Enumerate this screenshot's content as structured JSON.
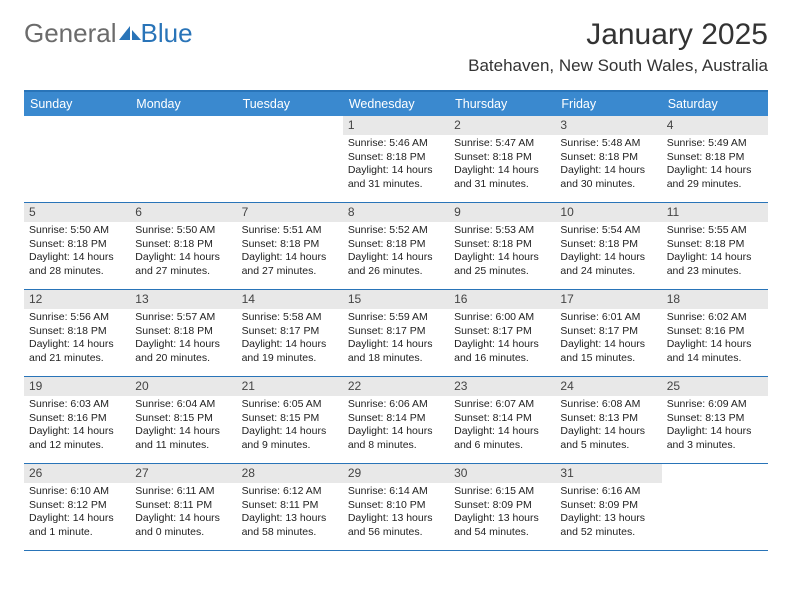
{
  "logo": {
    "text1": "General",
    "text2": "Blue"
  },
  "title": "January 2025",
  "location": "Batehaven, New South Wales, Australia",
  "colors": {
    "header_bar": "#3a89cf",
    "header_border": "#2974b8",
    "day_num_bg": "#e8e8e8",
    "logo_gray": "#6b6b6b",
    "logo_blue": "#2974b8"
  },
  "day_names": [
    "Sunday",
    "Monday",
    "Tuesday",
    "Wednesday",
    "Thursday",
    "Friday",
    "Saturday"
  ],
  "weeks": [
    [
      {
        "n": "",
        "sunrise": "",
        "sunset": "",
        "daylight": ""
      },
      {
        "n": "",
        "sunrise": "",
        "sunset": "",
        "daylight": ""
      },
      {
        "n": "",
        "sunrise": "",
        "sunset": "",
        "daylight": ""
      },
      {
        "n": "1",
        "sunrise": "Sunrise: 5:46 AM",
        "sunset": "Sunset: 8:18 PM",
        "daylight": "Daylight: 14 hours and 31 minutes."
      },
      {
        "n": "2",
        "sunrise": "Sunrise: 5:47 AM",
        "sunset": "Sunset: 8:18 PM",
        "daylight": "Daylight: 14 hours and 31 minutes."
      },
      {
        "n": "3",
        "sunrise": "Sunrise: 5:48 AM",
        "sunset": "Sunset: 8:18 PM",
        "daylight": "Daylight: 14 hours and 30 minutes."
      },
      {
        "n": "4",
        "sunrise": "Sunrise: 5:49 AM",
        "sunset": "Sunset: 8:18 PM",
        "daylight": "Daylight: 14 hours and 29 minutes."
      }
    ],
    [
      {
        "n": "5",
        "sunrise": "Sunrise: 5:50 AM",
        "sunset": "Sunset: 8:18 PM",
        "daylight": "Daylight: 14 hours and 28 minutes."
      },
      {
        "n": "6",
        "sunrise": "Sunrise: 5:50 AM",
        "sunset": "Sunset: 8:18 PM",
        "daylight": "Daylight: 14 hours and 27 minutes."
      },
      {
        "n": "7",
        "sunrise": "Sunrise: 5:51 AM",
        "sunset": "Sunset: 8:18 PM",
        "daylight": "Daylight: 14 hours and 27 minutes."
      },
      {
        "n": "8",
        "sunrise": "Sunrise: 5:52 AM",
        "sunset": "Sunset: 8:18 PM",
        "daylight": "Daylight: 14 hours and 26 minutes."
      },
      {
        "n": "9",
        "sunrise": "Sunrise: 5:53 AM",
        "sunset": "Sunset: 8:18 PM",
        "daylight": "Daylight: 14 hours and 25 minutes."
      },
      {
        "n": "10",
        "sunrise": "Sunrise: 5:54 AM",
        "sunset": "Sunset: 8:18 PM",
        "daylight": "Daylight: 14 hours and 24 minutes."
      },
      {
        "n": "11",
        "sunrise": "Sunrise: 5:55 AM",
        "sunset": "Sunset: 8:18 PM",
        "daylight": "Daylight: 14 hours and 23 minutes."
      }
    ],
    [
      {
        "n": "12",
        "sunrise": "Sunrise: 5:56 AM",
        "sunset": "Sunset: 8:18 PM",
        "daylight": "Daylight: 14 hours and 21 minutes."
      },
      {
        "n": "13",
        "sunrise": "Sunrise: 5:57 AM",
        "sunset": "Sunset: 8:18 PM",
        "daylight": "Daylight: 14 hours and 20 minutes."
      },
      {
        "n": "14",
        "sunrise": "Sunrise: 5:58 AM",
        "sunset": "Sunset: 8:17 PM",
        "daylight": "Daylight: 14 hours and 19 minutes."
      },
      {
        "n": "15",
        "sunrise": "Sunrise: 5:59 AM",
        "sunset": "Sunset: 8:17 PM",
        "daylight": "Daylight: 14 hours and 18 minutes."
      },
      {
        "n": "16",
        "sunrise": "Sunrise: 6:00 AM",
        "sunset": "Sunset: 8:17 PM",
        "daylight": "Daylight: 14 hours and 16 minutes."
      },
      {
        "n": "17",
        "sunrise": "Sunrise: 6:01 AM",
        "sunset": "Sunset: 8:17 PM",
        "daylight": "Daylight: 14 hours and 15 minutes."
      },
      {
        "n": "18",
        "sunrise": "Sunrise: 6:02 AM",
        "sunset": "Sunset: 8:16 PM",
        "daylight": "Daylight: 14 hours and 14 minutes."
      }
    ],
    [
      {
        "n": "19",
        "sunrise": "Sunrise: 6:03 AM",
        "sunset": "Sunset: 8:16 PM",
        "daylight": "Daylight: 14 hours and 12 minutes."
      },
      {
        "n": "20",
        "sunrise": "Sunrise: 6:04 AM",
        "sunset": "Sunset: 8:15 PM",
        "daylight": "Daylight: 14 hours and 11 minutes."
      },
      {
        "n": "21",
        "sunrise": "Sunrise: 6:05 AM",
        "sunset": "Sunset: 8:15 PM",
        "daylight": "Daylight: 14 hours and 9 minutes."
      },
      {
        "n": "22",
        "sunrise": "Sunrise: 6:06 AM",
        "sunset": "Sunset: 8:14 PM",
        "daylight": "Daylight: 14 hours and 8 minutes."
      },
      {
        "n": "23",
        "sunrise": "Sunrise: 6:07 AM",
        "sunset": "Sunset: 8:14 PM",
        "daylight": "Daylight: 14 hours and 6 minutes."
      },
      {
        "n": "24",
        "sunrise": "Sunrise: 6:08 AM",
        "sunset": "Sunset: 8:13 PM",
        "daylight": "Daylight: 14 hours and 5 minutes."
      },
      {
        "n": "25",
        "sunrise": "Sunrise: 6:09 AM",
        "sunset": "Sunset: 8:13 PM",
        "daylight": "Daylight: 14 hours and 3 minutes."
      }
    ],
    [
      {
        "n": "26",
        "sunrise": "Sunrise: 6:10 AM",
        "sunset": "Sunset: 8:12 PM",
        "daylight": "Daylight: 14 hours and 1 minute."
      },
      {
        "n": "27",
        "sunrise": "Sunrise: 6:11 AM",
        "sunset": "Sunset: 8:11 PM",
        "daylight": "Daylight: 14 hours and 0 minutes."
      },
      {
        "n": "28",
        "sunrise": "Sunrise: 6:12 AM",
        "sunset": "Sunset: 8:11 PM",
        "daylight": "Daylight: 13 hours and 58 minutes."
      },
      {
        "n": "29",
        "sunrise": "Sunrise: 6:14 AM",
        "sunset": "Sunset: 8:10 PM",
        "daylight": "Daylight: 13 hours and 56 minutes."
      },
      {
        "n": "30",
        "sunrise": "Sunrise: 6:15 AM",
        "sunset": "Sunset: 8:09 PM",
        "daylight": "Daylight: 13 hours and 54 minutes."
      },
      {
        "n": "31",
        "sunrise": "Sunrise: 6:16 AM",
        "sunset": "Sunset: 8:09 PM",
        "daylight": "Daylight: 13 hours and 52 minutes."
      },
      {
        "n": "",
        "sunrise": "",
        "sunset": "",
        "daylight": ""
      }
    ]
  ]
}
